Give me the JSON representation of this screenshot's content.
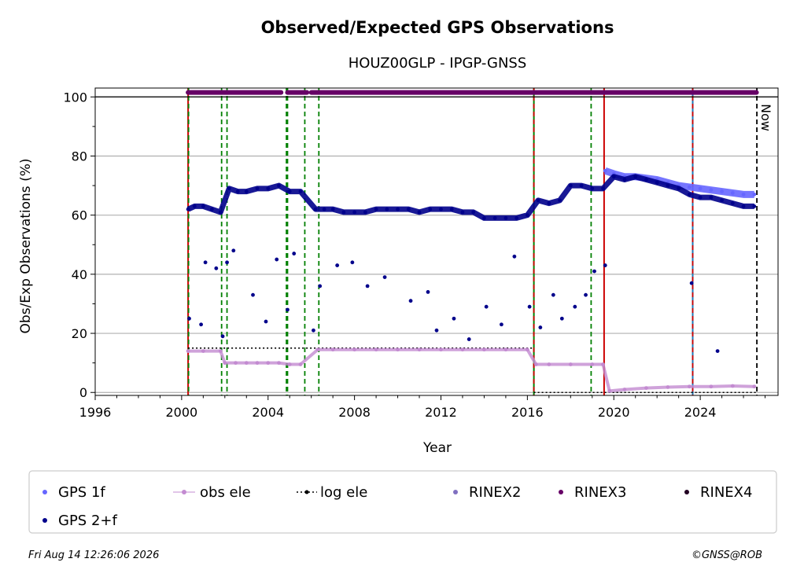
{
  "chart_data": {
    "type": "scatter",
    "title": "Observed/Expected GPS Observations",
    "subtitle": "HOUZ00GLP - IPGP-GNSS",
    "xlabel": "Year",
    "ylabel": "Obs/Exp Observations (%)",
    "xlim": [
      1996,
      2027.6
    ],
    "ylim": [
      -1,
      103
    ],
    "x_ticks": [
      1996,
      2000,
      2004,
      2008,
      2012,
      2016,
      2020,
      2024
    ],
    "y_ticks": [
      0,
      20,
      40,
      60,
      80,
      100
    ],
    "grid": "horizontal",
    "now_label": "Now",
    "now_x": 2026.62,
    "colors": {
      "gps_1f": "#6666ff",
      "gps_2f": "#00008b",
      "obs_ele": "#c38bd1",
      "log_ele": "#000000",
      "rinex2": "#8070c0",
      "rinex3": "#660066",
      "rinex4": "#220022",
      "receiver_change": "#cc0000",
      "antenna_change": "#008000",
      "other_change": "#1f77b4"
    },
    "series": [
      {
        "name": "GPS 1f",
        "key": "gps_1f",
        "x": [
          2019.6,
          2020.0,
          2020.5,
          2021.0,
          2021.5,
          2022.0,
          2022.5,
          2023.0,
          2023.5,
          2024.0,
          2024.5,
          2025.0,
          2025.5,
          2026.0,
          2026.5
        ],
        "y": [
          75,
          74,
          73,
          73,
          72.5,
          72,
          71,
          70,
          69.5,
          69,
          68.5,
          68,
          67.5,
          67,
          67
        ]
      },
      {
        "name": "GPS 2+f",
        "key": "gps_2f",
        "x": [
          2000.3,
          2000.6,
          2001.0,
          2001.4,
          2001.8,
          2002.2,
          2002.6,
          2003.0,
          2003.5,
          2004.0,
          2004.5,
          2005.0,
          2005.5,
          2006.2,
          2006.6,
          2007.0,
          2007.5,
          2008.0,
          2008.5,
          2009.0,
          2009.5,
          2010.0,
          2010.5,
          2011.0,
          2011.5,
          2012.0,
          2012.5,
          2013.0,
          2013.5,
          2014.0,
          2014.5,
          2015.0,
          2015.5,
          2016.0,
          2016.5,
          2017.0,
          2017.5,
          2018.0,
          2018.5,
          2019.0,
          2019.5,
          2020.0,
          2020.5,
          2021.0,
          2021.5,
          2022.0,
          2022.5,
          2023.0,
          2023.5,
          2024.0,
          2024.5,
          2025.0,
          2025.5,
          2026.0,
          2026.5
        ],
        "y": [
          62,
          63,
          63,
          62,
          61,
          69,
          68,
          68,
          69,
          69,
          70,
          68,
          68,
          62,
          62,
          62,
          61,
          61,
          61,
          62,
          62,
          62,
          62,
          61,
          62,
          62,
          62,
          61,
          61,
          59,
          59,
          59,
          59,
          60,
          65,
          64,
          65,
          70,
          70,
          69,
          69,
          73,
          72,
          73,
          72,
          71,
          70,
          69,
          67,
          66,
          66,
          65,
          64,
          63,
          63
        ]
      },
      {
        "name": "GPS 2+f outliers",
        "key": "gps_2f",
        "x": [
          2000.35,
          2000.9,
          2001.1,
          2001.6,
          2001.9,
          2002.1,
          2002.4,
          2003.3,
          2003.9,
          2004.4,
          2004.9,
          2005.2,
          2006.1,
          2006.4,
          2007.2,
          2007.9,
          2008.6,
          2009.4,
          2010.6,
          2011.4,
          2011.8,
          2012.6,
          2013.3,
          2014.1,
          2014.8,
          2015.4,
          2016.1,
          2016.6,
          2017.2,
          2017.6,
          2018.2,
          2018.7,
          2019.1,
          2019.6,
          2023.6,
          2024.8
        ],
        "y": [
          25,
          23,
          44,
          42,
          19,
          44,
          48,
          33,
          24,
          45,
          28,
          47,
          21,
          36,
          43,
          44,
          36,
          39,
          31,
          34,
          21,
          25,
          18,
          29,
          23,
          46,
          29,
          22,
          33,
          25,
          29,
          33,
          41,
          43,
          37,
          14
        ]
      },
      {
        "name": "obs ele",
        "key": "obs_ele",
        "x": [
          2000.3,
          2001.0,
          2001.8,
          2002.0,
          2002.5,
          2003.0,
          2003.5,
          2004.0,
          2004.5,
          2005.0,
          2005.5,
          2006.3,
          2007.0,
          2008.0,
          2009.0,
          2010.0,
          2011.0,
          2012.0,
          2013.0,
          2014.0,
          2015.0,
          2016.0,
          2016.4,
          2017.0,
          2018.0,
          2019.0,
          2019.5,
          2019.8,
          2020.5,
          2021.5,
          2022.5,
          2023.5,
          2024.5,
          2025.5,
          2026.5
        ],
        "y": [
          14,
          14,
          14,
          10,
          10,
          10,
          10,
          10,
          10,
          9.5,
          9.5,
          14.5,
          14.5,
          14.5,
          14.5,
          14.5,
          14.5,
          14.5,
          14.5,
          14.5,
          14.5,
          14.5,
          9.5,
          9.5,
          9.5,
          9.5,
          9.5,
          0.5,
          1,
          1.5,
          1.8,
          2,
          2,
          2.2,
          2
        ]
      }
    ],
    "log_ele": [
      {
        "x": [
          2000.3,
          2016.3
        ],
        "y": [
          15,
          15
        ]
      },
      {
        "x": [
          2016.3,
          2026.6
        ],
        "y": [
          0,
          0
        ]
      }
    ],
    "rinex_segments": [
      {
        "format": "RINEX3",
        "x": [
          2000.3,
          2004.6
        ],
        "y": 101.5
      },
      {
        "format": "RINEX3",
        "x": [
          2004.9,
          2005.8
        ],
        "y": 101.5
      },
      {
        "format": "RINEX3",
        "x": [
          2006.0,
          2026.6
        ],
        "y": 101.5
      }
    ],
    "event_lines": [
      {
        "x": 2000.3,
        "kind": "receiver_change",
        "style": "solid"
      },
      {
        "x": 2000.32,
        "kind": "antenna_change",
        "style": "dashed"
      },
      {
        "x": 2001.85,
        "kind": "antenna_change",
        "style": "dashed"
      },
      {
        "x": 2002.1,
        "kind": "antenna_change",
        "style": "dashed"
      },
      {
        "x": 2004.85,
        "kind": "antenna_change",
        "style": "dashed"
      },
      {
        "x": 2004.9,
        "kind": "antenna_change",
        "style": "dashed"
      },
      {
        "x": 2005.7,
        "kind": "antenna_change",
        "style": "dashed"
      },
      {
        "x": 2006.35,
        "kind": "antenna_change",
        "style": "dashed"
      },
      {
        "x": 2016.3,
        "kind": "antenna_change",
        "style": "solid"
      },
      {
        "x": 2016.3,
        "kind": "receiver_change",
        "style": "dashed"
      },
      {
        "x": 2018.95,
        "kind": "antenna_change",
        "style": "dashed"
      },
      {
        "x": 2019.55,
        "kind": "receiver_change",
        "style": "solid"
      },
      {
        "x": 2023.65,
        "kind": "other_change",
        "style": "solid"
      },
      {
        "x": 2023.65,
        "kind": "receiver_change",
        "style": "dashed"
      },
      {
        "x": 2026.62,
        "kind": "now",
        "style": "dashed"
      }
    ],
    "legend": {
      "placement": "bottom",
      "entries": [
        {
          "label": "GPS 1f",
          "key": "gps_1f",
          "marker": "dot"
        },
        {
          "label": "obs ele",
          "key": "obs_ele",
          "marker": "dot-line"
        },
        {
          "label": "log ele",
          "key": "log_ele",
          "marker": "dot-dotted"
        },
        {
          "label": "RINEX2",
          "key": "rinex2",
          "marker": "dot"
        },
        {
          "label": "RINEX3",
          "key": "rinex3",
          "marker": "dot"
        },
        {
          "label": "RINEX4",
          "key": "rinex4",
          "marker": "dot"
        },
        {
          "label": "GPS 2+f",
          "key": "gps_2f",
          "marker": "dot"
        }
      ]
    }
  },
  "footer": {
    "timestamp": "Fri Aug 14 12:26:06 2026",
    "credit": "©GNSS@ROB"
  }
}
